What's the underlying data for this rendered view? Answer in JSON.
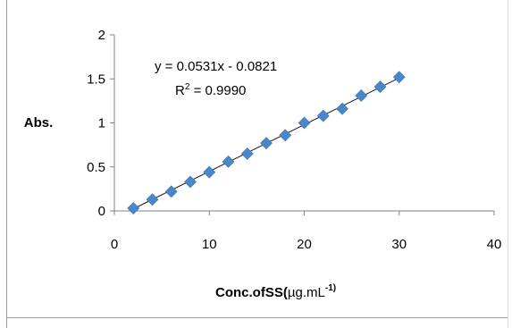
{
  "chart_data": {
    "type": "scatter",
    "title": "",
    "xlabel_main": "Conc.ofSS(",
    "xlabel_unit_mu": "µ",
    "xlabel_unit_rest": "g.mL",
    "xlabel_sup": "-1)",
    "ylabel": "Abs.",
    "xlim": [
      0,
      40
    ],
    "ylim": [
      0,
      2
    ],
    "xticks": [
      0,
      10,
      20,
      30,
      40
    ],
    "yticks": [
      0,
      0.5,
      1,
      1.5,
      2
    ],
    "xtick_labels": [
      "0",
      "10",
      "20",
      "30",
      "40"
    ],
    "ytick_labels": [
      "0",
      "0.5",
      "1",
      "1.5",
      "2"
    ],
    "grid": false,
    "legend": false,
    "marker": "diamond",
    "marker_color": "#4a86c8",
    "trend_color": "#1a1a1a",
    "x": [
      2,
      4,
      6,
      8,
      10,
      12,
      14,
      16,
      18,
      20,
      22,
      24,
      26,
      28,
      30
    ],
    "y": [
      0.03,
      0.13,
      0.22,
      0.33,
      0.44,
      0.56,
      0.65,
      0.77,
      0.86,
      1.0,
      1.08,
      1.16,
      1.31,
      1.41,
      1.52
    ],
    "trendline": {
      "slope": 0.0531,
      "intercept": -0.0821,
      "x_start": 2,
      "x_end": 30
    },
    "annotations": {
      "equation": "y = 0.0531x - 0.0821",
      "r2_prefix": "R",
      "r2_sup": "2",
      "r2_value": " = 0.9990"
    }
  }
}
